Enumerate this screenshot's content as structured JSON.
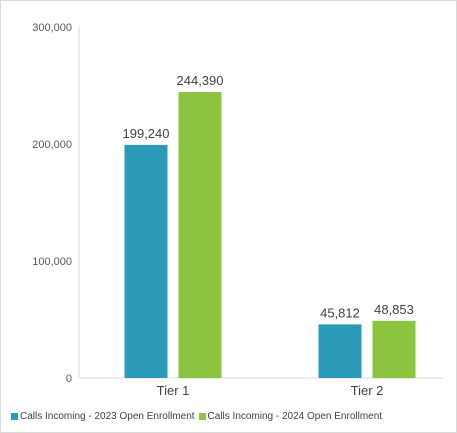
{
  "chart_data": {
    "type": "bar",
    "title": "",
    "xlabel": "",
    "ylabel": "",
    "categories": [
      "Tier 1",
      "Tier 2"
    ],
    "series": [
      {
        "name": "Calls Incoming - 2023 Open Enrollment",
        "values": [
          199240,
          45812
        ],
        "labels": [
          "199,240",
          "45,812"
        ],
        "color": "#2a9ab8"
      },
      {
        "name": "Calls Incoming - 2024 Open Enrollment",
        "values": [
          244390,
          48853
        ],
        "labels": [
          "244,390",
          "48,853"
        ],
        "color": "#8cc43f"
      }
    ],
    "ylim": [
      0,
      300000
    ],
    "yticks": [
      0,
      100000,
      200000,
      300000
    ],
    "ytick_labels": [
      "0",
      "100,000",
      "200,000",
      "300,000"
    ],
    "grid": false,
    "legend_position": "bottom-left"
  },
  "legend": {
    "items": [
      {
        "label": "Calls Incoming - 2023 Open Enrollment",
        "color": "#2a9ab8"
      },
      {
        "label": "Calls Incoming - 2024 Open Enrollment",
        "color": "#8cc43f"
      }
    ]
  }
}
